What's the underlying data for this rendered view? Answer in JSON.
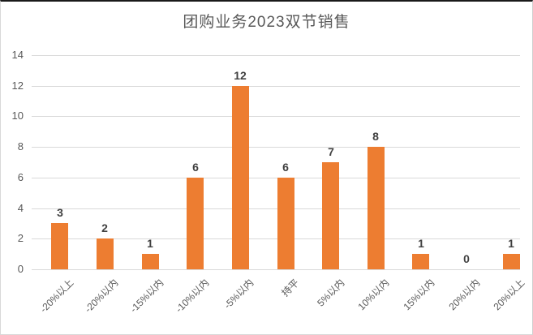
{
  "chart_data": {
    "type": "bar",
    "title": "团购业务2023双节销售",
    "categories": [
      "-20%以上",
      "-20%以内",
      "-15%以内",
      "-10%以内",
      "-5%以内",
      "持平",
      "5%以内",
      "10%以内",
      "15%以内",
      "20%以内",
      "20%以上"
    ],
    "values": [
      3,
      2,
      1,
      6,
      12,
      6,
      7,
      8,
      1,
      0,
      1
    ],
    "yticks": [
      0,
      2,
      4,
      6,
      8,
      10,
      12,
      14
    ],
    "ylim": [
      0,
      14
    ],
    "xlabel": "",
    "ylabel": "",
    "legend_position": "none",
    "grid": "horizontal",
    "bar_color": "#ED7D31",
    "gridline_color": "#D9D9D9",
    "axis_label_color": "#595959",
    "data_label_color": "#404040",
    "title_color": "#595959"
  }
}
